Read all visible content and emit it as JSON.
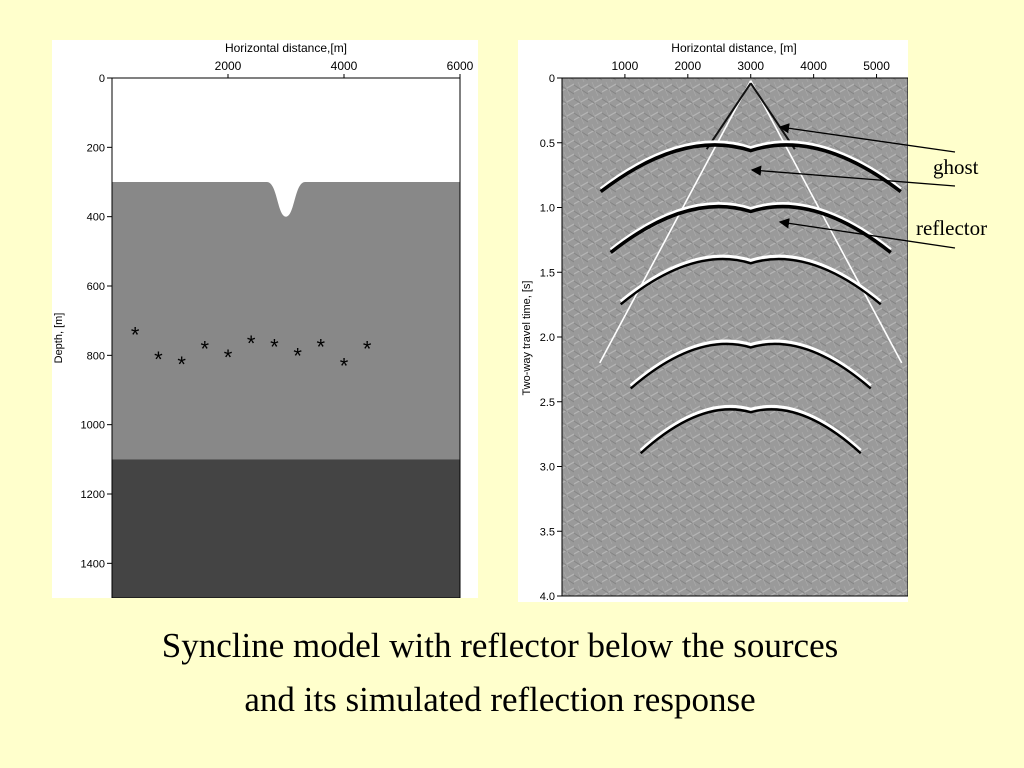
{
  "slide": {
    "caption_line_1": "Syncline model with reflector below the sources",
    "caption_line_2": "and its simulated reflection response",
    "background_color": "#ffffcc"
  },
  "model_panel": {
    "xlabel": "Horizontal distance,[m]",
    "ylabel": "Depth, [m]",
    "x_ticks": [
      "2000",
      "4000",
      "6000"
    ],
    "y_ticks": [
      "0",
      "200",
      "400",
      "600",
      "800",
      "1000",
      "1200",
      "1400"
    ],
    "xlim": [
      0,
      6000
    ],
    "ylim": [
      0,
      1500
    ],
    "layers": [
      {
        "top_depth": 0,
        "color": "#ffffff"
      },
      {
        "top_depth": 300,
        "color": "#888888"
      },
      {
        "top_depth": 1100,
        "color": "#444444"
      }
    ],
    "syncline": {
      "center_x": 3000,
      "bottom_depth": 400
    },
    "sources": [
      {
        "x": 400,
        "depth": 740
      },
      {
        "x": 800,
        "depth": 810
      },
      {
        "x": 1200,
        "depth": 825
      },
      {
        "x": 1600,
        "depth": 780
      },
      {
        "x": 2000,
        "depth": 805
      },
      {
        "x": 2400,
        "depth": 765
      },
      {
        "x": 2800,
        "depth": 775
      },
      {
        "x": 3200,
        "depth": 800
      },
      {
        "x": 3600,
        "depth": 775
      },
      {
        "x": 4000,
        "depth": 830
      },
      {
        "x": 4400,
        "depth": 780
      }
    ]
  },
  "response_panel": {
    "xlabel": "Horizontal distance, [m]",
    "ylabel": "Two-way travel time, [s]",
    "x_ticks": [
      "1000",
      "2000",
      "3000",
      "4000",
      "5000"
    ],
    "y_ticks": [
      "0",
      "0.5",
      "1.0",
      "1.5",
      "2.0",
      "2.5",
      "3.0",
      "3.5",
      "4.0"
    ],
    "xlim": [
      0,
      5500
    ],
    "ylim": [
      0,
      4.0
    ],
    "apex_x": 3000,
    "events_s": [
      0.53,
      1.0,
      1.4,
      2.05,
      2.55
    ]
  },
  "annotations": {
    "ghost": "ghost",
    "reflector": "reflector"
  }
}
